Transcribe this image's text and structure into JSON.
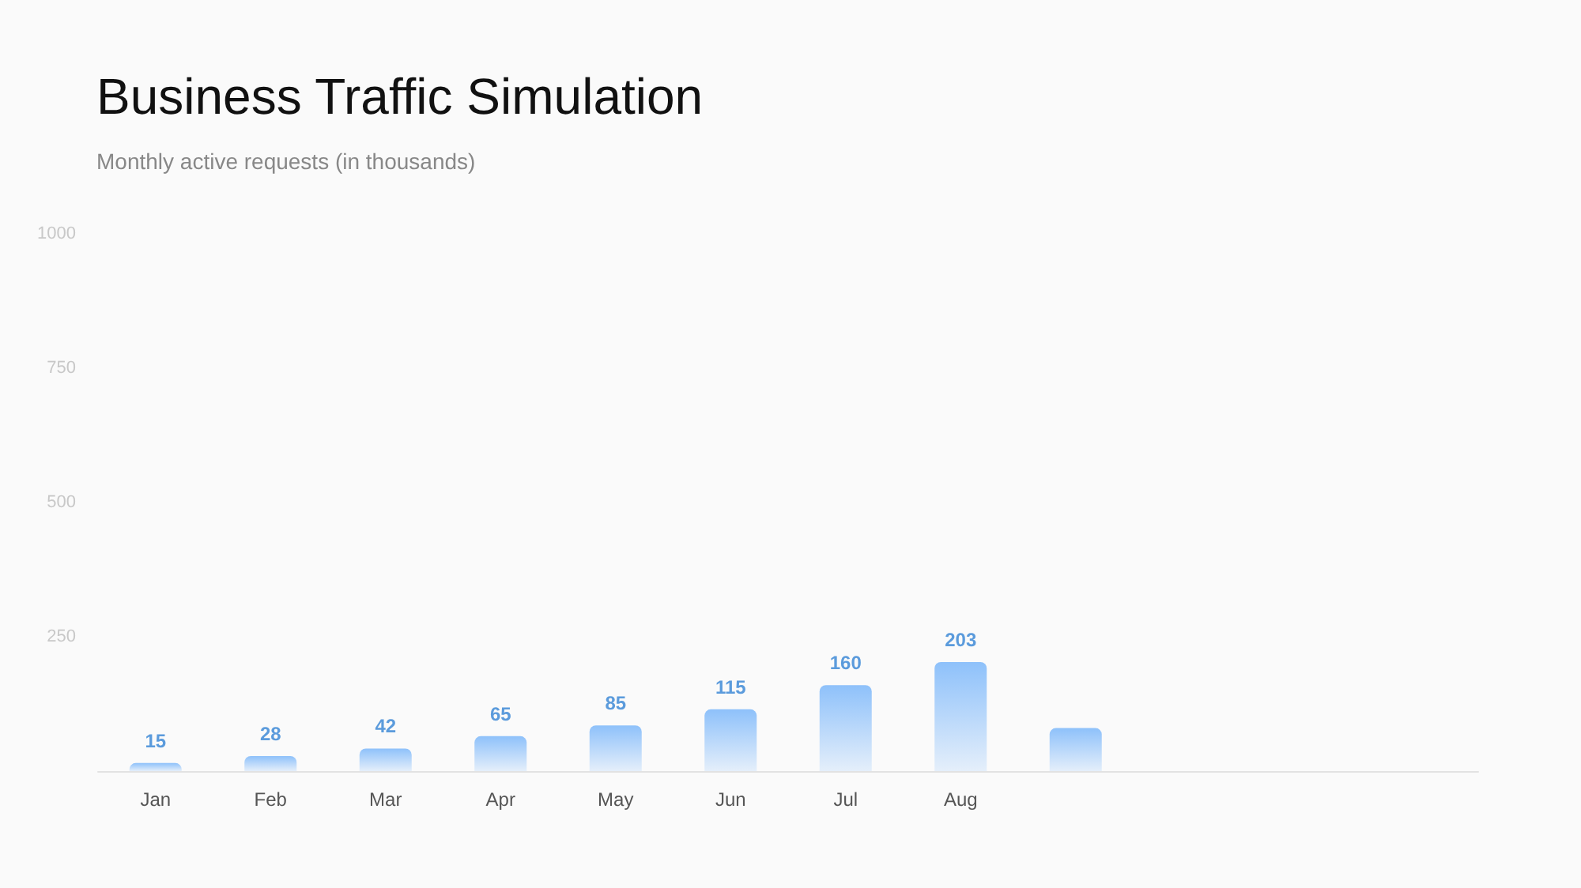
{
  "chart_data": {
    "type": "bar",
    "title": "Business Traffic Simulation",
    "subtitle": "Monthly active requests (in thousands)",
    "categories": [
      "Jan",
      "Feb",
      "Mar",
      "Apr",
      "May",
      "Jun",
      "Jul",
      "Aug",
      null,
      null,
      null,
      null
    ],
    "values": [
      15,
      28,
      42,
      65,
      85,
      115,
      160,
      203,
      80,
      null,
      null,
      null
    ],
    "value_labels": [
      "15",
      "28",
      "42",
      "65",
      "85",
      "115",
      "160",
      "203",
      null,
      null,
      null,
      null
    ],
    "color": "#8ec1fa",
    "ylim": [
      0,
      1000
    ],
    "yticks": [
      250,
      500,
      750,
      1000
    ],
    "grid": false
  }
}
